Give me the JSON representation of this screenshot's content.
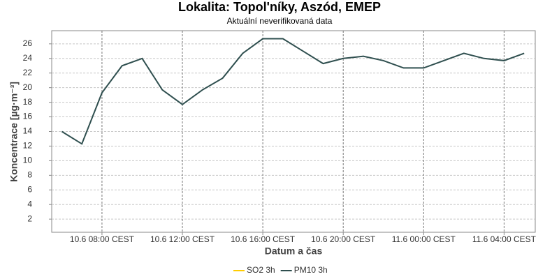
{
  "chart_data": {
    "type": "line",
    "title": "Lokalita: Topol'níky, Aszód, EMEP",
    "subtitle": "Aktuální neverifikovaná data",
    "x_label": "Datum a čas",
    "y_label": "Koncentrace [µg·m⁻³]",
    "x": [
      6,
      7,
      8,
      9,
      10,
      11,
      12,
      13,
      14,
      15,
      16,
      17,
      18,
      19,
      20,
      21,
      22,
      23,
      24,
      25,
      26,
      27,
      28,
      29
    ],
    "xlim": [
      5.5,
      29.55
    ],
    "xticks": [
      {
        "value": 8,
        "label": "10.6 08:00 CEST"
      },
      {
        "value": 12,
        "label": "10.6 12:00 CEST"
      },
      {
        "value": 16,
        "label": "10.6 16:00 CEST"
      },
      {
        "value": 20,
        "label": "10.6 20:00 CEST"
      },
      {
        "value": 24,
        "label": "11.6 00:00 CEST"
      },
      {
        "value": 28,
        "label": "11.6 04:00 CEST"
      }
    ],
    "ylim": [
      0.2,
      27.8
    ],
    "yticks": [
      2,
      4,
      6,
      8,
      10,
      12,
      14,
      16,
      18,
      20,
      22,
      24,
      26
    ],
    "grid": true,
    "legend": "bottom",
    "series": [
      {
        "name": "SO2 3h",
        "color": "#ffcc00",
        "values": [
          null,
          null,
          null,
          null,
          null,
          null,
          null,
          null,
          null,
          null,
          null,
          null,
          null,
          null,
          null,
          null,
          null,
          null,
          null,
          null,
          null,
          null,
          null,
          null
        ]
      },
      {
        "name": "PM10 3h",
        "color": "#2f4f4f",
        "values": [
          14,
          12.3,
          19.3,
          23,
          24,
          19.7,
          17.7,
          19.7,
          21.3,
          24.7,
          26.7,
          26.7,
          25,
          23.3,
          24,
          24.3,
          23.7,
          22.7,
          22.7,
          23.7,
          24.7,
          24,
          23.7,
          24.7
        ]
      }
    ]
  }
}
